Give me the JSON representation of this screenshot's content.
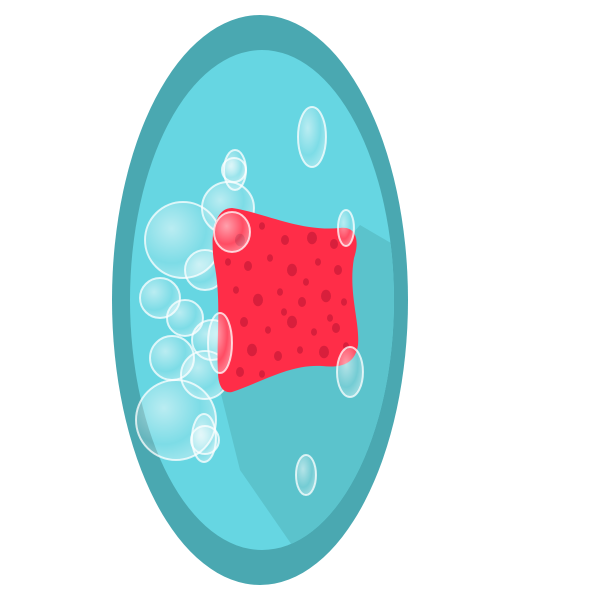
{
  "illustration": {
    "subject": "sponge-with-bubbles-icon",
    "colors": {
      "background": "#ffffff",
      "rim": "#4aa8b1",
      "face": "#66d6e2",
      "face_shadow": "#5bc3cc",
      "sponge": "#ff2d48",
      "sponge_pore": "#d81f3c",
      "bubble_fill": "#e9fbfe",
      "bubble_edge": "#ffffff"
    }
  }
}
